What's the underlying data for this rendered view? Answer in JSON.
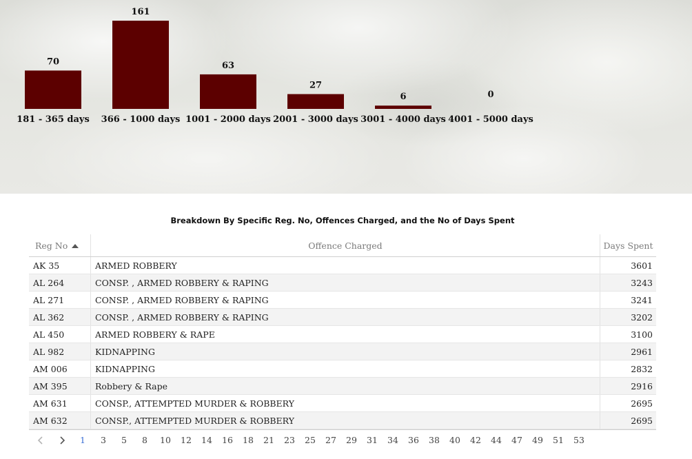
{
  "chart_data": {
    "type": "bar",
    "categories": [
      "181 - 365 days",
      "366 - 1000 days",
      "1001 - 2000 days",
      "2001 - 3000 days",
      "3001 - 4000 days",
      "4001 - 5000 days"
    ],
    "values": [
      70,
      161,
      63,
      27,
      6,
      0
    ],
    "ylim": [
      0,
      161
    ],
    "grid": false,
    "bar_color": "#5c0000"
  },
  "table": {
    "title": "Breakdown By Specific Reg. No, Offences Charged, and the No of Days Spent",
    "headers": {
      "reg_no": "Reg No",
      "offence": "Offence Charged",
      "days": "Days Spent"
    },
    "rows": [
      {
        "reg_no": "AK 35",
        "offence": "ARMED ROBBERY",
        "days": "3601"
      },
      {
        "reg_no": "AL 264",
        "offence": "CONSP. , ARMED ROBBERY & RAPING",
        "days": "3243"
      },
      {
        "reg_no": "AL 271",
        "offence": "CONSP. , ARMED ROBBERY & RAPING",
        "days": "3241"
      },
      {
        "reg_no": "AL 362",
        "offence": "CONSP. , ARMED ROBBERY & RAPING",
        "days": "3202"
      },
      {
        "reg_no": "AL 450",
        "offence": "ARMED ROBBERY & RAPE",
        "days": "3100"
      },
      {
        "reg_no": "AL 982",
        "offence": "KIDNAPPING",
        "days": "2961"
      },
      {
        "reg_no": "AM 006",
        "offence": "KIDNAPPING",
        "days": "2832"
      },
      {
        "reg_no": "AM 395",
        "offence": "Robbery & Rape",
        "days": "2916"
      },
      {
        "reg_no": "AM 631",
        "offence": "CONSP., ATTEMPTED MURDER & ROBBERY",
        "days": "2695"
      },
      {
        "reg_no": "AM 632",
        "offence": "CONSP., ATTEMPTED MURDER & ROBBERY",
        "days": "2695"
      }
    ]
  },
  "pagination": {
    "prev_icon": "chevron-left-icon",
    "next_icon": "chevron-right-icon",
    "current": "1",
    "pages": [
      "1",
      "3",
      "5",
      "8",
      "10",
      "12",
      "14",
      "16",
      "18",
      "21",
      "23",
      "25",
      "27",
      "29",
      "31",
      "34",
      "36",
      "38",
      "40",
      "42",
      "44",
      "47",
      "49",
      "51",
      "53"
    ],
    "active_color": "#3b6fd6"
  }
}
